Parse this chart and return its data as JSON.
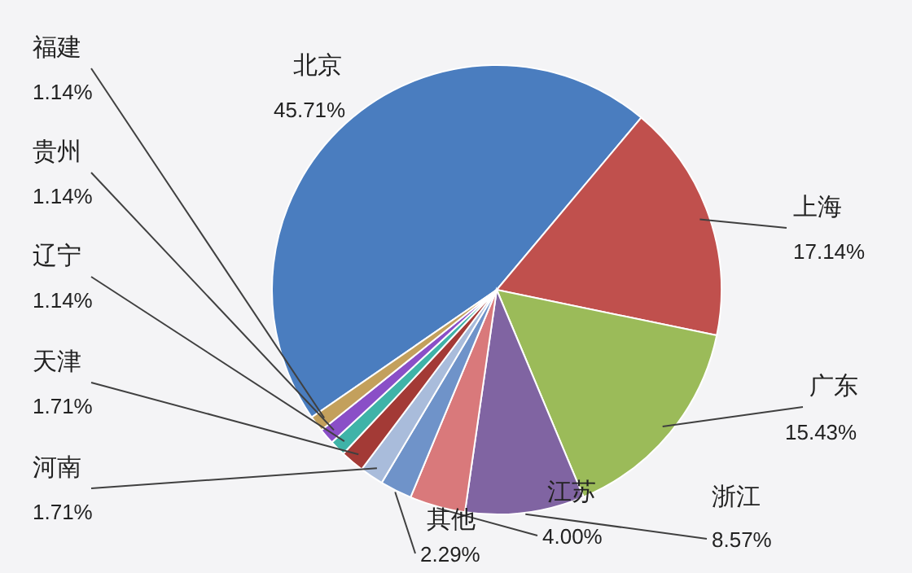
{
  "chart_data": {
    "type": "pie",
    "categories": [
      "北京",
      "上海",
      "广东",
      "浙江",
      "江苏",
      "其他",
      "河南",
      "天津",
      "辽宁",
      "贵州",
      "福建"
    ],
    "values": [
      45.71,
      17.14,
      15.43,
      8.57,
      4.0,
      2.29,
      1.71,
      1.71,
      1.14,
      1.14,
      1.14
    ],
    "value_labels": [
      "45.71%",
      "17.14%",
      "15.43%",
      "8.57%",
      "4.00%",
      "2.29%",
      "1.71%",
      "1.71%",
      "1.14%",
      "1.14%",
      "1.14%"
    ],
    "colors": [
      "#4a7dbf",
      "#c0504d",
      "#9bbb59",
      "#8064a2",
      "#d9797b",
      "#6f93c9",
      "#a9bcdb",
      "#a33a36",
      "#3fb3a8",
      "#8a4fc7",
      "#c3a05c"
    ]
  }
}
